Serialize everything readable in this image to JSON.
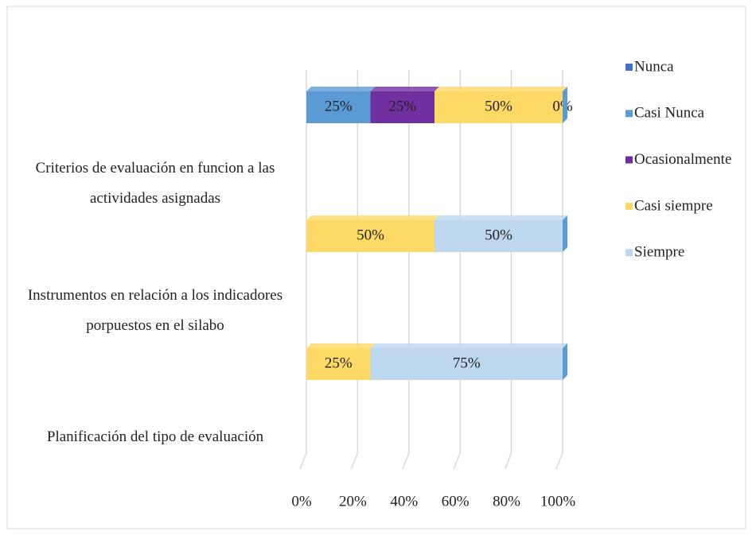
{
  "chart_data": {
    "type": "bar3d_stacked_horizontal",
    "categories": [
      "Criterios de evaluación en funcion a las actividades asignadas",
      "Instrumentos en relación a los indicadores porpuestos en el silabo",
      "Planificación del tipo de evaluación"
    ],
    "series": [
      {
        "name": "Nunca",
        "color": "#4472c4",
        "values": [
          0,
          0,
          0
        ],
        "value_labels": [
          null,
          null,
          null
        ]
      },
      {
        "name": "Casi Nunca",
        "color": "#5b9bd5",
        "values": [
          25,
          0,
          0
        ],
        "value_labels": [
          "25%",
          null,
          null
        ]
      },
      {
        "name": "Ocasionalmente",
        "color": "#7030a0",
        "values": [
          25,
          0,
          0
        ],
        "value_labels": [
          "25%",
          null,
          null
        ]
      },
      {
        "name": "Casi siempre",
        "color": "#ffd966",
        "values": [
          50,
          50,
          25
        ],
        "value_labels": [
          "50%",
          "50%",
          "25%"
        ]
      },
      {
        "name": "Siempre",
        "color": "#bdd7ee",
        "values": [
          0,
          50,
          75
        ],
        "value_labels": [
          "0%",
          "50%",
          "75%"
        ]
      }
    ],
    "xlim": [
      0,
      100
    ],
    "xticks": [
      {
        "value": 0,
        "label": "0%"
      },
      {
        "value": 20,
        "label": "20%"
      },
      {
        "value": 40,
        "label": "40%"
      },
      {
        "value": 60,
        "label": "60%"
      },
      {
        "value": 80,
        "label": "80%"
      },
      {
        "value": 100,
        "label": "100%"
      }
    ],
    "grid": true,
    "legend": "right"
  }
}
